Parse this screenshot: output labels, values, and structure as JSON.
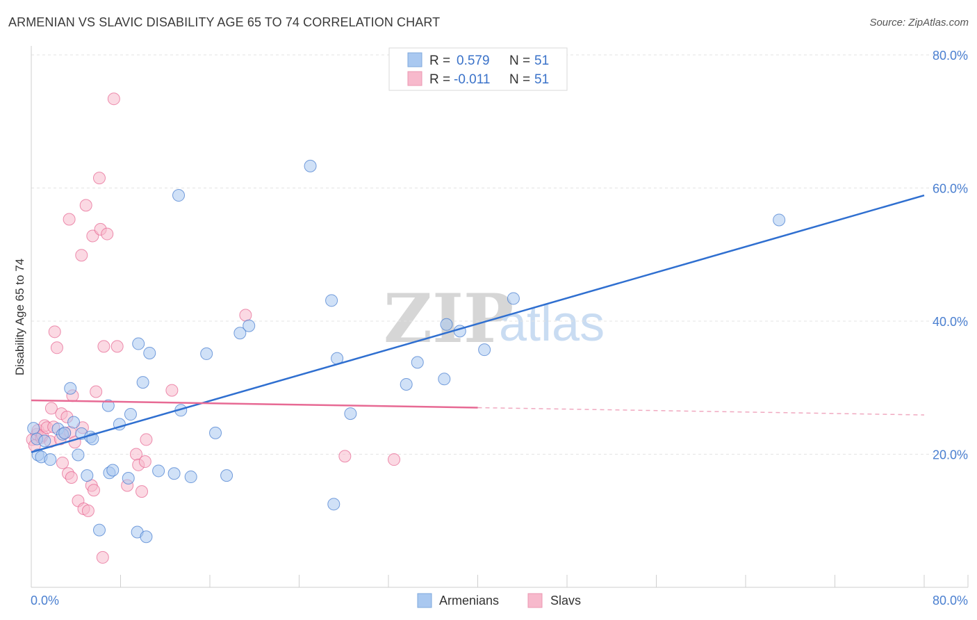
{
  "header": {
    "title": "ARMENIAN VS SLAVIC DISABILITY AGE 65 TO 74 CORRELATION CHART",
    "source": "Source: ZipAtlas.com"
  },
  "watermark": {
    "zip": "ZIP",
    "atlas": "atlas"
  },
  "legend": {
    "rows": [
      {
        "r_label": "R =",
        "r_value": "0.579",
        "n_label": "N =",
        "n_value": "51",
        "color": "#a9c8f0"
      },
      {
        "r_label": "R =",
        "r_value": "-0.011",
        "n_label": "N =",
        "n_value": "51",
        "color": "#f7b9cc"
      }
    ]
  },
  "bottom_legend": {
    "armenians": "Armenians",
    "slavs": "Slavs"
  },
  "chart_data": {
    "type": "scatter",
    "title": "ARMENIAN VS SLAVIC DISABILITY AGE 65 TO 74 CORRELATION CHART",
    "xlabel": "",
    "ylabel": "Disability Age 65 to 74",
    "xlim": [
      0,
      80
    ],
    "ylim": [
      0,
      80
    ],
    "x_tick_labels": [
      "0.0%",
      "80.0%"
    ],
    "y_ticks": [
      20,
      40,
      60,
      80
    ],
    "y_tick_labels": [
      "20.0%",
      "40.0%",
      "60.0%",
      "80.0%"
    ],
    "series": [
      {
        "name": "Armenians",
        "color": "#4a7fd0",
        "fill": "#a9c8f0",
        "r": 0.579,
        "n": 51,
        "trend": {
          "x": [
            0,
            80
          ],
          "y": [
            20.3,
            58.9
          ]
        },
        "points": [
          [
            0.2,
            23.9
          ],
          [
            0.5,
            22.3
          ],
          [
            0.6,
            19.9
          ],
          [
            0.9,
            19.6
          ],
          [
            1.2,
            22.0
          ],
          [
            1.7,
            19.2
          ],
          [
            2.4,
            23.8
          ],
          [
            2.8,
            23.0
          ],
          [
            3.0,
            23.2
          ],
          [
            3.5,
            29.9
          ],
          [
            3.8,
            24.8
          ],
          [
            4.2,
            19.9
          ],
          [
            4.5,
            23.1
          ],
          [
            5.0,
            16.8
          ],
          [
            5.3,
            22.6
          ],
          [
            5.5,
            22.3
          ],
          [
            6.1,
            8.6
          ],
          [
            6.9,
            27.3
          ],
          [
            7.0,
            17.2
          ],
          [
            7.3,
            17.6
          ],
          [
            7.9,
            24.5
          ],
          [
            8.7,
            16.4
          ],
          [
            8.9,
            26.0
          ],
          [
            9.5,
            8.3
          ],
          [
            9.6,
            36.6
          ],
          [
            10.0,
            30.8
          ],
          [
            10.3,
            7.6
          ],
          [
            10.6,
            35.2
          ],
          [
            11.4,
            17.5
          ],
          [
            12.8,
            17.1
          ],
          [
            13.2,
            58.9
          ],
          [
            13.4,
            26.6
          ],
          [
            14.3,
            16.6
          ],
          [
            15.7,
            35.1
          ],
          [
            16.5,
            23.2
          ],
          [
            17.5,
            16.8
          ],
          [
            18.7,
            38.2
          ],
          [
            19.5,
            39.3
          ],
          [
            25.0,
            63.3
          ],
          [
            26.9,
            43.1
          ],
          [
            27.1,
            12.5
          ],
          [
            27.4,
            34.4
          ],
          [
            28.6,
            26.1
          ],
          [
            33.6,
            30.5
          ],
          [
            34.6,
            33.8
          ],
          [
            37.0,
            31.3
          ],
          [
            37.2,
            39.5
          ],
          [
            38.4,
            38.5
          ],
          [
            40.6,
            35.7
          ],
          [
            43.2,
            43.4
          ],
          [
            67.0,
            55.2
          ]
        ]
      },
      {
        "name": "Slavs",
        "color": "#e76a94",
        "fill": "#f7b9cc",
        "r": -0.011,
        "n": 51,
        "trend": {
          "x": [
            0,
            40
          ],
          "y": [
            28.1,
            27.0
          ]
        },
        "trend_dashed": {
          "x": [
            40,
            80
          ],
          "y": [
            27.0,
            25.9
          ]
        },
        "points": [
          [
            0.1,
            22.2
          ],
          [
            0.3,
            21.3
          ],
          [
            0.5,
            23.0
          ],
          [
            0.6,
            23.6
          ],
          [
            0.9,
            22.5
          ],
          [
            1.0,
            22.8
          ],
          [
            1.2,
            24.3
          ],
          [
            1.4,
            24.0
          ],
          [
            1.7,
            21.9
          ],
          [
            1.8,
            26.9
          ],
          [
            2.0,
            24.1
          ],
          [
            2.1,
            38.4
          ],
          [
            2.3,
            36.0
          ],
          [
            2.6,
            22.3
          ],
          [
            2.7,
            26.1
          ],
          [
            2.8,
            18.7
          ],
          [
            3.0,
            23.2
          ],
          [
            3.2,
            25.6
          ],
          [
            3.3,
            17.1
          ],
          [
            3.4,
            55.3
          ],
          [
            3.5,
            23.3
          ],
          [
            3.6,
            16.5
          ],
          [
            3.7,
            28.8
          ],
          [
            3.9,
            21.8
          ],
          [
            4.2,
            13.0
          ],
          [
            4.5,
            49.9
          ],
          [
            4.6,
            24.0
          ],
          [
            4.7,
            11.8
          ],
          [
            4.9,
            57.4
          ],
          [
            5.1,
            11.5
          ],
          [
            5.4,
            15.3
          ],
          [
            5.5,
            52.8
          ],
          [
            5.6,
            14.6
          ],
          [
            5.8,
            29.4
          ],
          [
            6.1,
            61.5
          ],
          [
            6.2,
            53.8
          ],
          [
            6.4,
            4.5
          ],
          [
            6.5,
            36.2
          ],
          [
            6.8,
            53.1
          ],
          [
            7.4,
            73.4
          ],
          [
            7.7,
            36.2
          ],
          [
            8.6,
            15.3
          ],
          [
            9.4,
            20.0
          ],
          [
            9.6,
            18.4
          ],
          [
            9.9,
            14.4
          ],
          [
            10.2,
            18.9
          ],
          [
            10.3,
            22.2
          ],
          [
            12.6,
            29.6
          ],
          [
            19.2,
            40.9
          ],
          [
            28.1,
            19.7
          ],
          [
            32.5,
            19.2
          ]
        ]
      }
    ]
  }
}
